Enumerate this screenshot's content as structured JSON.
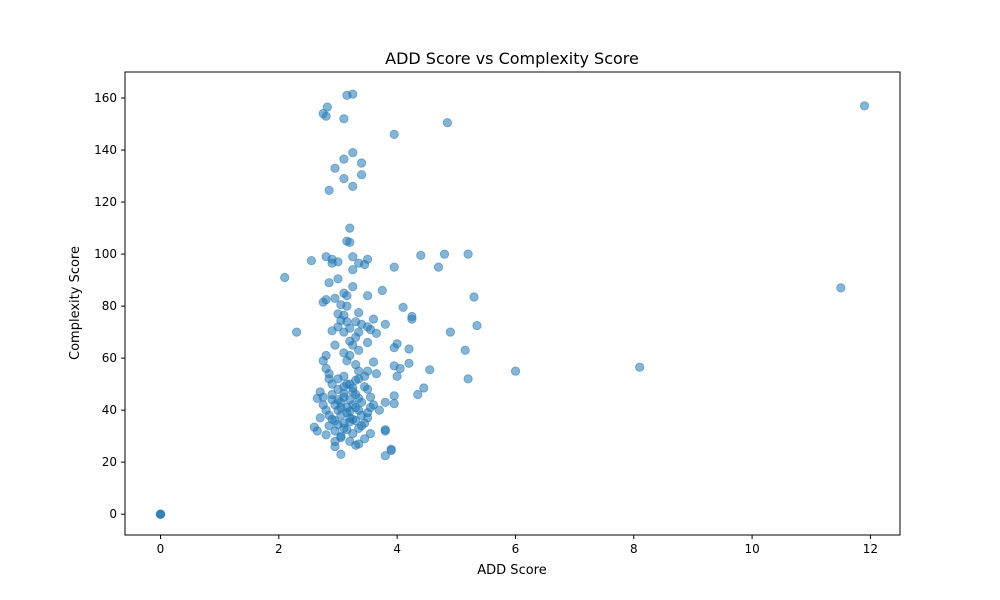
{
  "chart_data": {
    "type": "scatter",
    "title": "ADD Score vs Complexity Score",
    "xlabel": "ADD Score",
    "ylabel": "Complexity Score",
    "xlim": [
      -0.6,
      12.5
    ],
    "ylim": [
      -8,
      170
    ],
    "xticks": [
      0,
      2,
      4,
      6,
      8,
      10,
      12
    ],
    "yticks": [
      0,
      20,
      40,
      60,
      80,
      100,
      120,
      140,
      160
    ],
    "grid": false,
    "marker_color": "#1f77b4",
    "marker_alpha": 0.55,
    "points": [
      [
        0.0,
        0.0
      ],
      [
        0.0,
        0.0
      ],
      [
        0.0,
        0.0
      ],
      [
        2.1,
        91
      ],
      [
        2.3,
        70
      ],
      [
        2.55,
        97.5
      ],
      [
        2.75,
        154
      ],
      [
        2.8,
        153
      ],
      [
        2.82,
        156.5
      ],
      [
        3.15,
        161
      ],
      [
        3.25,
        161.5
      ],
      [
        3.1,
        152
      ],
      [
        3.95,
        146
      ],
      [
        4.85,
        150.5
      ],
      [
        11.9,
        157
      ],
      [
        3.25,
        139
      ],
      [
        3.1,
        136.5
      ],
      [
        3.4,
        135
      ],
      [
        2.95,
        133
      ],
      [
        3.4,
        130.5
      ],
      [
        3.1,
        129
      ],
      [
        3.25,
        126
      ],
      [
        2.85,
        124.5
      ],
      [
        3.2,
        110
      ],
      [
        3.15,
        105
      ],
      [
        3.2,
        104.5
      ],
      [
        2.8,
        99
      ],
      [
        2.9,
        98
      ],
      [
        3.0,
        97
      ],
      [
        3.25,
        99
      ],
      [
        3.5,
        98
      ],
      [
        2.9,
        96.5
      ],
      [
        3.35,
        96.5
      ],
      [
        3.45,
        96
      ],
      [
        3.95,
        95
      ],
      [
        4.4,
        99.5
      ],
      [
        4.8,
        100
      ],
      [
        5.2,
        100
      ],
      [
        4.7,
        95
      ],
      [
        3.25,
        94
      ],
      [
        3.0,
        90.5
      ],
      [
        2.85,
        89
      ],
      [
        3.25,
        87.5
      ],
      [
        3.75,
        86
      ],
      [
        3.1,
        85
      ],
      [
        3.15,
        84
      ],
      [
        3.5,
        84
      ],
      [
        2.95,
        83
      ],
      [
        2.8,
        82.5
      ],
      [
        2.75,
        81.5
      ],
      [
        3.05,
        80.5
      ],
      [
        3.15,
        80
      ],
      [
        4.1,
        79.5
      ],
      [
        5.3,
        83.5
      ],
      [
        11.5,
        87
      ],
      [
        3.0,
        77
      ],
      [
        3.1,
        76.5
      ],
      [
        3.35,
        77.5
      ],
      [
        3.6,
        75
      ],
      [
        4.25,
        76
      ],
      [
        4.25,
        75
      ],
      [
        3.05,
        74.5
      ],
      [
        3.15,
        74
      ],
      [
        3.3,
        74
      ],
      [
        3.4,
        73
      ],
      [
        3.8,
        73
      ],
      [
        5.35,
        72.5
      ],
      [
        3.0,
        72
      ],
      [
        3.2,
        71.5
      ],
      [
        3.5,
        72
      ],
      [
        3.55,
        71
      ],
      [
        2.9,
        70.5
      ],
      [
        3.1,
        70
      ],
      [
        3.35,
        70
      ],
      [
        3.65,
        69.5
      ],
      [
        4.9,
        70
      ],
      [
        3.3,
        68
      ],
      [
        3.5,
        66
      ],
      [
        3.2,
        66.5
      ],
      [
        3.25,
        65
      ],
      [
        2.95,
        65
      ],
      [
        4.0,
        65.5
      ],
      [
        3.95,
        64
      ],
      [
        4.2,
        63.5
      ],
      [
        3.35,
        63
      ],
      [
        3.1,
        62
      ],
      [
        2.8,
        61
      ],
      [
        3.2,
        61
      ],
      [
        5.15,
        63
      ],
      [
        2.75,
        59
      ],
      [
        3.15,
        59
      ],
      [
        3.3,
        57.5
      ],
      [
        3.6,
        58.5
      ],
      [
        3.95,
        57
      ],
      [
        4.2,
        58
      ],
      [
        4.05,
        56
      ],
      [
        2.8,
        56
      ],
      [
        3.35,
        55
      ],
      [
        3.5,
        55
      ],
      [
        3.65,
        54
      ],
      [
        2.85,
        54
      ],
      [
        4.0,
        53
      ],
      [
        4.55,
        55.5
      ],
      [
        5.2,
        52
      ],
      [
        6.0,
        55
      ],
      [
        8.1,
        56.5
      ],
      [
        2.85,
        52
      ],
      [
        3.3,
        51.5
      ],
      [
        2.7,
        47
      ],
      [
        2.75,
        45
      ],
      [
        2.65,
        44.5
      ],
      [
        2.9,
        46
      ],
      [
        3.0,
        48
      ],
      [
        3.1,
        49
      ],
      [
        3.15,
        50
      ],
      [
        3.25,
        47
      ],
      [
        3.3,
        46
      ],
      [
        3.45,
        49
      ],
      [
        3.5,
        48
      ],
      [
        3.2,
        44
      ],
      [
        3.0,
        44
      ],
      [
        2.95,
        42
      ],
      [
        3.05,
        43
      ],
      [
        3.15,
        41
      ],
      [
        3.25,
        42
      ],
      [
        3.35,
        40
      ],
      [
        3.4,
        43
      ],
      [
        3.55,
        45
      ],
      [
        3.7,
        40
      ],
      [
        3.8,
        43
      ],
      [
        3.95,
        45.5
      ],
      [
        3.95,
        42.5
      ],
      [
        4.35,
        46
      ],
      [
        4.45,
        48.5
      ],
      [
        3.55,
        41
      ],
      [
        2.8,
        40
      ],
      [
        2.85,
        38
      ],
      [
        2.95,
        36
      ],
      [
        3.05,
        38
      ],
      [
        3.1,
        35
      ],
      [
        3.2,
        37
      ],
      [
        3.3,
        36
      ],
      [
        3.4,
        38
      ],
      [
        3.5,
        39
      ],
      [
        3.0,
        40
      ],
      [
        3.2,
        39.5
      ],
      [
        3.3,
        41
      ],
      [
        3.1,
        45
      ],
      [
        3.2,
        50
      ],
      [
        2.75,
        42
      ],
      [
        2.7,
        37
      ],
      [
        2.6,
        33.5
      ],
      [
        2.65,
        32
      ],
      [
        2.85,
        34
      ],
      [
        2.95,
        32
      ],
      [
        3.05,
        30
      ],
      [
        3.15,
        32.5
      ],
      [
        3.25,
        31
      ],
      [
        3.35,
        33
      ],
      [
        3.45,
        35
      ],
      [
        3.55,
        31
      ],
      [
        3.8,
        32.5
      ],
      [
        3.8,
        32
      ],
      [
        2.8,
        30.5
      ],
      [
        2.95,
        28
      ],
      [
        3.05,
        29.5
      ],
      [
        3.2,
        28
      ],
      [
        3.35,
        27
      ],
      [
        3.45,
        29
      ],
      [
        2.95,
        26
      ],
      [
        3.3,
        26.5
      ],
      [
        3.9,
        25
      ],
      [
        3.9,
        24.5
      ],
      [
        3.05,
        23
      ],
      [
        3.8,
        22.5
      ],
      [
        2.9,
        50
      ],
      [
        3.0,
        52
      ],
      [
        3.1,
        53
      ],
      [
        3.35,
        52
      ],
      [
        3.45,
        53
      ],
      [
        3.25,
        48.5
      ],
      [
        3.1,
        46.5
      ],
      [
        2.9,
        44
      ],
      [
        3.35,
        44.5
      ],
      [
        3.05,
        41
      ],
      [
        3.15,
        39
      ],
      [
        3.25,
        36.5
      ],
      [
        3.4,
        34
      ],
      [
        3.0,
        34.5
      ],
      [
        3.1,
        33
      ],
      [
        3.2,
        35.5
      ],
      [
        2.9,
        36.5
      ],
      [
        3.5,
        37
      ],
      [
        3.6,
        42
      ]
    ]
  }
}
